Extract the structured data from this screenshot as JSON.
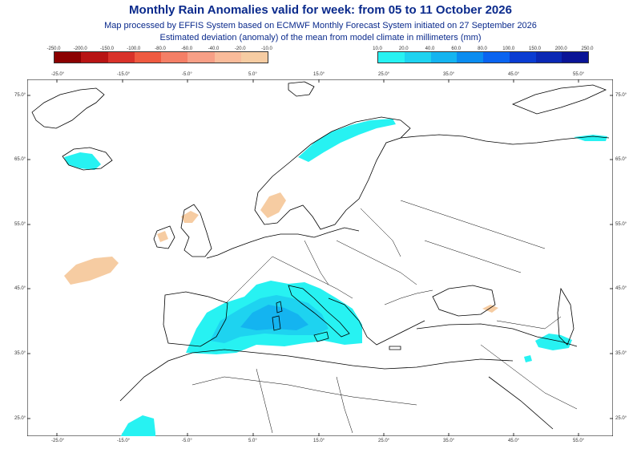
{
  "header": {
    "title": "Monthly Rain Anomalies valid for week: from 05 to 11 October 2026",
    "subtitle1": "Map processed by EFFIS System based on ECMWF Monthly Forecast System initiated on 27 September 2026",
    "subtitle2": "Estimated deviation (anomaly) of the mean from model climate in millimeters (mm)"
  },
  "legend": {
    "negative": {
      "labels": [
        "-250.0",
        "-200.0",
        "-150.0",
        "-100.0",
        "-80.0",
        "-60.0",
        "-40.0",
        "-20.0",
        "-10.0"
      ],
      "colors": [
        "#8b0000",
        "#b81414",
        "#d9322a",
        "#ef5a40",
        "#f47f66",
        "#f79f86",
        "#f9bb9a",
        "#f6cca2"
      ]
    },
    "positive": {
      "labels": [
        "10.0",
        "20.0",
        "40.0",
        "60.0",
        "80.0",
        "100.0",
        "150.0",
        "200.0",
        "250.0"
      ],
      "colors": [
        "#27f2f2",
        "#1ed3f0",
        "#14b4f0",
        "#0a8cf0",
        "#0a64f0",
        "#0a3cd2",
        "#0a28b4",
        "#0a1496"
      ]
    }
  },
  "axes": {
    "lon_labels": [
      "-25.0°",
      "-15.0°",
      "-5.0°",
      "5.0°",
      "15.0°",
      "25.0°",
      "35.0°",
      "45.0°",
      "55.0°"
    ],
    "lat_labels": [
      "75.0°",
      "65.0°",
      "55.0°",
      "45.0°",
      "35.0°",
      "25.0°"
    ]
  },
  "colors": {
    "title": "#0a2a8c",
    "wet_light": "#27f2f2",
    "wet_mid": "#1ed3f0",
    "wet_dark": "#14b4f0",
    "dry": "#f6cca2",
    "border": "#000000"
  }
}
